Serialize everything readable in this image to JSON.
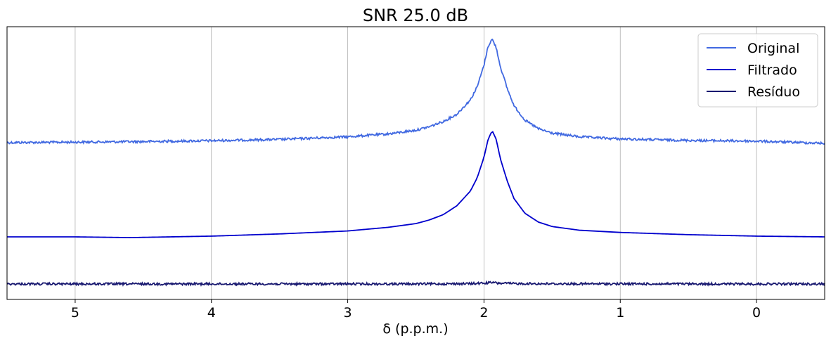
{
  "chart_data": {
    "type": "line",
    "title": "SNR 25.0 dB",
    "xlabel": "δ (p.p.m.)",
    "ylabel": "",
    "x_inverted": true,
    "xlim": [
      5.5,
      -0.5
    ],
    "xticks": [
      5,
      4,
      3,
      2,
      1,
      0
    ],
    "xtick_labels": [
      "5",
      "4",
      "3",
      "2",
      "1",
      "0"
    ],
    "y_ticks_visible": false,
    "grid": "x-only",
    "legend_position": "top-right",
    "peak_center": 1.94,
    "series": [
      {
        "name": "Original",
        "color": "#4169e1",
        "noisy": true,
        "x": [
          5.5,
          5.0,
          4.5,
          4.0,
          3.5,
          3.0,
          2.7,
          2.5,
          2.4,
          2.3,
          2.2,
          2.1,
          2.05,
          2.0,
          1.97,
          1.94,
          1.91,
          1.88,
          1.83,
          1.78,
          1.7,
          1.6,
          1.5,
          1.3,
          1.0,
          0.5,
          0.0,
          -0.5
        ],
        "y": [
          0.025,
          0.028,
          0.032,
          0.038,
          0.047,
          0.065,
          0.085,
          0.11,
          0.135,
          0.17,
          0.22,
          0.32,
          0.41,
          0.56,
          0.69,
          0.74,
          0.68,
          0.55,
          0.4,
          0.28,
          0.18,
          0.12,
          0.09,
          0.065,
          0.05,
          0.04,
          0.035,
          0.02
        ]
      },
      {
        "name": "Filtrado",
        "color": "#0000cd",
        "noisy": false,
        "x": [
          5.5,
          5.0,
          4.6,
          4.0,
          3.5,
          3.0,
          2.7,
          2.5,
          2.4,
          2.3,
          2.2,
          2.1,
          2.05,
          2.0,
          1.97,
          1.94,
          1.91,
          1.88,
          1.83,
          1.78,
          1.7,
          1.6,
          1.5,
          1.3,
          1.0,
          0.5,
          0.0,
          -0.5
        ],
        "y": [
          0.0,
          0.0,
          -0.005,
          0.005,
          0.02,
          0.04,
          0.065,
          0.09,
          0.115,
          0.15,
          0.21,
          0.31,
          0.4,
          0.54,
          0.66,
          0.72,
          0.66,
          0.53,
          0.38,
          0.26,
          0.16,
          0.1,
          0.07,
          0.045,
          0.03,
          0.015,
          0.005,
          0.0
        ]
      },
      {
        "name": "Resíduo",
        "color": "#191970",
        "noisy": true,
        "x": [
          5.5,
          4.5,
          3.5,
          2.5,
          2.1,
          2.0,
          1.94,
          1.9,
          1.8,
          1.5,
          0.5,
          -0.5
        ],
        "y": [
          0.0,
          0.0,
          0.0,
          0.0,
          0.002,
          0.006,
          0.01,
          0.006,
          0.003,
          0.001,
          0.0,
          0.0
        ]
      }
    ]
  }
}
